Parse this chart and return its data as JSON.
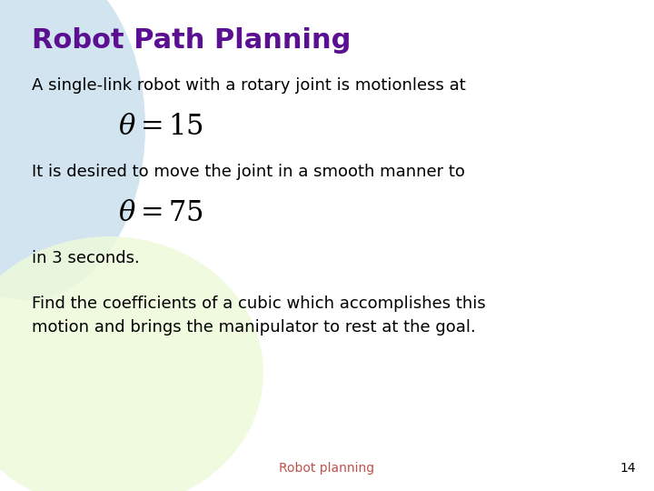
{
  "title": "Robot Path Planning",
  "title_color": "#5B0F91",
  "title_fontsize": 22,
  "body_text_color": "#000000",
  "body_fontsize": 13,
  "footer_text": "Robot planning",
  "footer_color": "#C0504D",
  "footer_fontsize": 10,
  "page_number": "14",
  "page_number_color": "#000000",
  "page_number_fontsize": 10,
  "bg_color": "#FFFFFF",
  "line1": "A single-link robot with a rotary joint is motionless at",
  "eq1": "$\\theta = 15$",
  "line2": "It is desired to move the joint in a smooth manner to",
  "eq2": "$\\theta = 75$",
  "line3": "in 3 seconds.",
  "line4": "Find the coefficients of a cubic which accomplishes this\nmotion and brings the manipulator to rest at the goal.",
  "ellipse1_color": "#BFD9EA",
  "ellipse2_color": "#EDFADA",
  "eq_fontsize": 22
}
